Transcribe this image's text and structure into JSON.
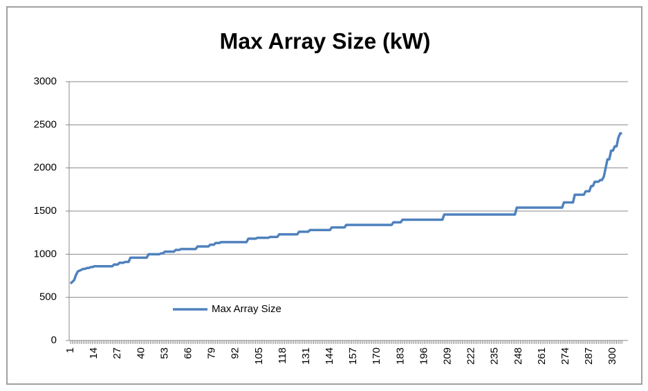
{
  "chart_data": {
    "type": "line",
    "title": "Max Array Size (kW)",
    "categories": [
      1,
      null,
      null,
      null,
      null,
      null,
      null,
      null,
      null,
      null,
      null,
      null,
      null,
      14,
      null,
      null,
      null,
      null,
      null,
      null,
      null,
      null,
      null,
      null,
      null,
      null,
      27,
      null,
      null,
      null,
      null,
      null,
      null,
      null,
      null,
      null,
      null,
      null,
      null,
      40,
      null,
      null,
      null,
      null,
      null,
      null,
      null,
      null,
      null,
      null,
      null,
      null,
      53,
      null,
      null,
      null,
      null,
      null,
      null,
      null,
      null,
      null,
      null,
      null,
      null,
      66,
      null,
      null,
      null,
      null,
      null,
      null,
      null,
      null,
      null,
      null,
      null,
      null,
      79,
      null,
      null,
      null,
      null,
      null,
      null,
      null,
      null,
      null,
      null,
      null,
      null,
      92,
      null,
      null,
      null,
      null,
      null,
      null,
      null,
      null,
      null,
      null,
      null,
      null,
      105,
      null,
      null,
      null,
      null,
      null,
      null,
      null,
      null,
      null,
      null,
      null,
      null,
      118,
      null,
      null,
      null,
      null,
      null,
      null,
      null,
      null,
      null,
      null,
      null,
      null,
      131,
      null,
      null,
      null,
      null,
      null,
      null,
      null,
      null,
      null,
      null,
      null,
      null,
      144,
      null,
      null,
      null,
      null,
      null,
      null,
      null,
      null,
      null,
      null,
      null,
      null,
      157,
      null,
      null,
      null,
      null,
      null,
      null,
      null,
      null,
      null,
      null,
      null,
      null,
      170,
      null,
      null,
      null,
      null,
      null,
      null,
      null,
      null,
      null,
      null,
      null,
      null,
      183,
      null,
      null,
      null,
      null,
      null,
      null,
      null,
      null,
      null,
      null,
      null,
      null,
      196,
      null,
      null,
      null,
      null,
      null,
      null,
      null,
      null,
      null,
      null,
      null,
      null,
      209,
      null,
      null,
      null,
      null,
      null,
      null,
      null,
      null,
      null,
      null,
      null,
      null,
      222,
      null,
      null,
      null,
      null,
      null,
      null,
      null,
      null,
      null,
      null,
      null,
      null,
      235,
      null,
      null,
      null,
      null,
      null,
      null,
      null,
      null,
      null,
      null,
      null,
      null,
      248,
      null,
      null,
      null,
      null,
      null,
      null,
      null,
      null,
      null,
      null,
      null,
      null,
      261,
      null,
      null,
      null,
      null,
      null,
      null,
      null,
      null,
      null,
      null,
      null,
      null,
      274,
      null,
      null,
      null,
      null,
      null,
      null,
      null,
      null,
      null,
      null,
      null,
      null,
      287,
      null,
      null,
      null,
      null,
      null,
      null,
      null,
      null,
      null,
      null,
      null,
      null,
      300,
      null,
      null,
      null,
      null,
      null
    ],
    "series": [
      {
        "name": "Max Array Size",
        "color": "#4f81bd",
        "values": [
          660,
          680,
          700,
          760,
          800,
          810,
          820,
          830,
          830,
          840,
          840,
          850,
          850,
          860,
          860,
          860,
          860,
          860,
          860,
          860,
          860,
          860,
          860,
          860,
          880,
          880,
          880,
          900,
          900,
          900,
          910,
          910,
          910,
          960,
          960,
          960,
          960,
          960,
          960,
          960,
          960,
          960,
          960,
          1000,
          1000,
          1000,
          1000,
          1000,
          1000,
          1000,
          1010,
          1010,
          1030,
          1030,
          1030,
          1030,
          1030,
          1030,
          1050,
          1050,
          1050,
          1060,
          1060,
          1060,
          1060,
          1060,
          1060,
          1060,
          1060,
          1060,
          1090,
          1090,
          1090,
          1090,
          1090,
          1090,
          1090,
          1110,
          1110,
          1110,
          1130,
          1130,
          1130,
          1140,
          1140,
          1140,
          1140,
          1140,
          1140,
          1140,
          1140,
          1140,
          1140,
          1140,
          1140,
          1140,
          1140,
          1140,
          1180,
          1180,
          1180,
          1180,
          1180,
          1190,
          1190,
          1190,
          1190,
          1190,
          1190,
          1190,
          1200,
          1200,
          1200,
          1200,
          1200,
          1230,
          1230,
          1230,
          1230,
          1230,
          1230,
          1230,
          1230,
          1230,
          1230,
          1230,
          1260,
          1260,
          1260,
          1260,
          1260,
          1260,
          1280,
          1280,
          1280,
          1280,
          1280,
          1280,
          1280,
          1280,
          1280,
          1280,
          1280,
          1280,
          1310,
          1310,
          1310,
          1310,
          1310,
          1310,
          1310,
          1310,
          1340,
          1340,
          1340,
          1340,
          1340,
          1340,
          1340,
          1340,
          1340,
          1340,
          1340,
          1340,
          1340,
          1340,
          1340,
          1340,
          1340,
          1340,
          1340,
          1340,
          1340,
          1340,
          1340,
          1340,
          1340,
          1340,
          1370,
          1370,
          1370,
          1370,
          1370,
          1400,
          1400,
          1400,
          1400,
          1400,
          1400,
          1400,
          1400,
          1400,
          1400,
          1400,
          1400,
          1400,
          1400,
          1400,
          1400,
          1400,
          1400,
          1400,
          1400,
          1400,
          1400,
          1400,
          1460,
          1460,
          1460,
          1460,
          1460,
          1460,
          1460,
          1460,
          1460,
          1460,
          1460,
          1460,
          1460,
          1460,
          1460,
          1460,
          1460,
          1460,
          1460,
          1460,
          1460,
          1460,
          1460,
          1460,
          1460,
          1460,
          1460,
          1460,
          1460,
          1460,
          1460,
          1460,
          1460,
          1460,
          1460,
          1460,
          1460,
          1460,
          1460,
          1460,
          1540,
          1540,
          1540,
          1540,
          1540,
          1540,
          1540,
          1540,
          1540,
          1540,
          1540,
          1540,
          1540,
          1540,
          1540,
          1540,
          1540,
          1540,
          1540,
          1540,
          1540,
          1540,
          1540,
          1540,
          1540,
          1540,
          1600,
          1600,
          1600,
          1600,
          1600,
          1600,
          1690,
          1690,
          1690,
          1690,
          1690,
          1690,
          1730,
          1730,
          1730,
          1790,
          1790,
          1840,
          1840,
          1840,
          1860,
          1860,
          1900,
          2000,
          2100,
          2100,
          2200,
          2200,
          2250,
          2250,
          2350,
          2400,
          2400
        ]
      }
    ],
    "ylim": [
      0,
      3000
    ],
    "yticks": [
      0,
      500,
      1000,
      1500,
      2000,
      2500,
      3000
    ],
    "grid": true,
    "legend": "lower-left"
  }
}
